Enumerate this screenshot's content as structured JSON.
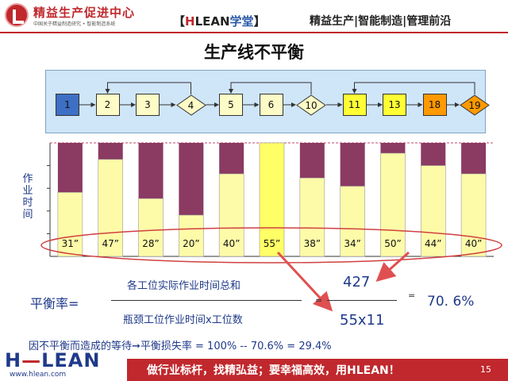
{
  "header": {
    "brand_title": "精益生产促进中心",
    "brand_sub": "中国关于精益制造研究 • 智能制造系统",
    "hlean_open": "【",
    "hlean_h": "H",
    "hlean_lean": "LEAN",
    "hlean_cn": "学堂",
    "hlean_close": "】",
    "right_text": "精益生产|智能制造|管理前沿"
  },
  "title": "生产线不平衡",
  "flow": {
    "nodes": [
      {
        "label": "1",
        "shape": "rect",
        "color": "#3d6fc4"
      },
      {
        "label": "2",
        "shape": "rect",
        "color": "#fdfbc6"
      },
      {
        "label": "3",
        "shape": "rect",
        "color": "#fdfbc6"
      },
      {
        "label": "4",
        "shape": "diamond",
        "color": "#fdfbc6"
      },
      {
        "label": "5",
        "shape": "rect",
        "color": "#fdfbc6"
      },
      {
        "label": "6",
        "shape": "rect",
        "color": "#fdfbc6"
      },
      {
        "label": "10",
        "shape": "diamond",
        "color": "#fdfbc6"
      },
      {
        "label": "11",
        "shape": "rect",
        "color": "#ffff33"
      },
      {
        "label": "13",
        "shape": "rect",
        "color": "#ffff33"
      },
      {
        "label": "18",
        "shape": "rect",
        "color": "#ff9900"
      },
      {
        "label": "19",
        "shape": "diamond",
        "color": "#ff9900"
      }
    ]
  },
  "chart_data": {
    "type": "bar",
    "ylabel": "作业时间",
    "categories": [
      "31”",
      "47”",
      "28”",
      "20”",
      "40”",
      "55”",
      "38”",
      "34”",
      "50”",
      "44”",
      "40”"
    ],
    "values": [
      31,
      47,
      28,
      20,
      40,
      55,
      38,
      34,
      50,
      44,
      40
    ],
    "cycle_time": 55,
    "colors": {
      "work": "#fdfba8",
      "idle": "#8b3a62",
      "bottleneck": "#ffff66"
    }
  },
  "formula": {
    "label": "平衡率=",
    "numerator_text": "各工位实际作业时间总和",
    "denominator_text": "瓶颈工位作业时间x工位数",
    "eq": "=",
    "num_value": "427",
    "den_value": "55x11",
    "result": "70. 6%"
  },
  "loss_text": "因不平衡而造成的等待➞平衡损失率 = 100% -- 70.6% = 29.4%",
  "footer": {
    "logo_h": "H",
    "logo_dash": "—",
    "logo_rest": "LEAN",
    "url": "www.hlean.com",
    "slogan": "做行业标杆，找精弘益；要幸福高效，用HLEAN！",
    "page": "15"
  }
}
